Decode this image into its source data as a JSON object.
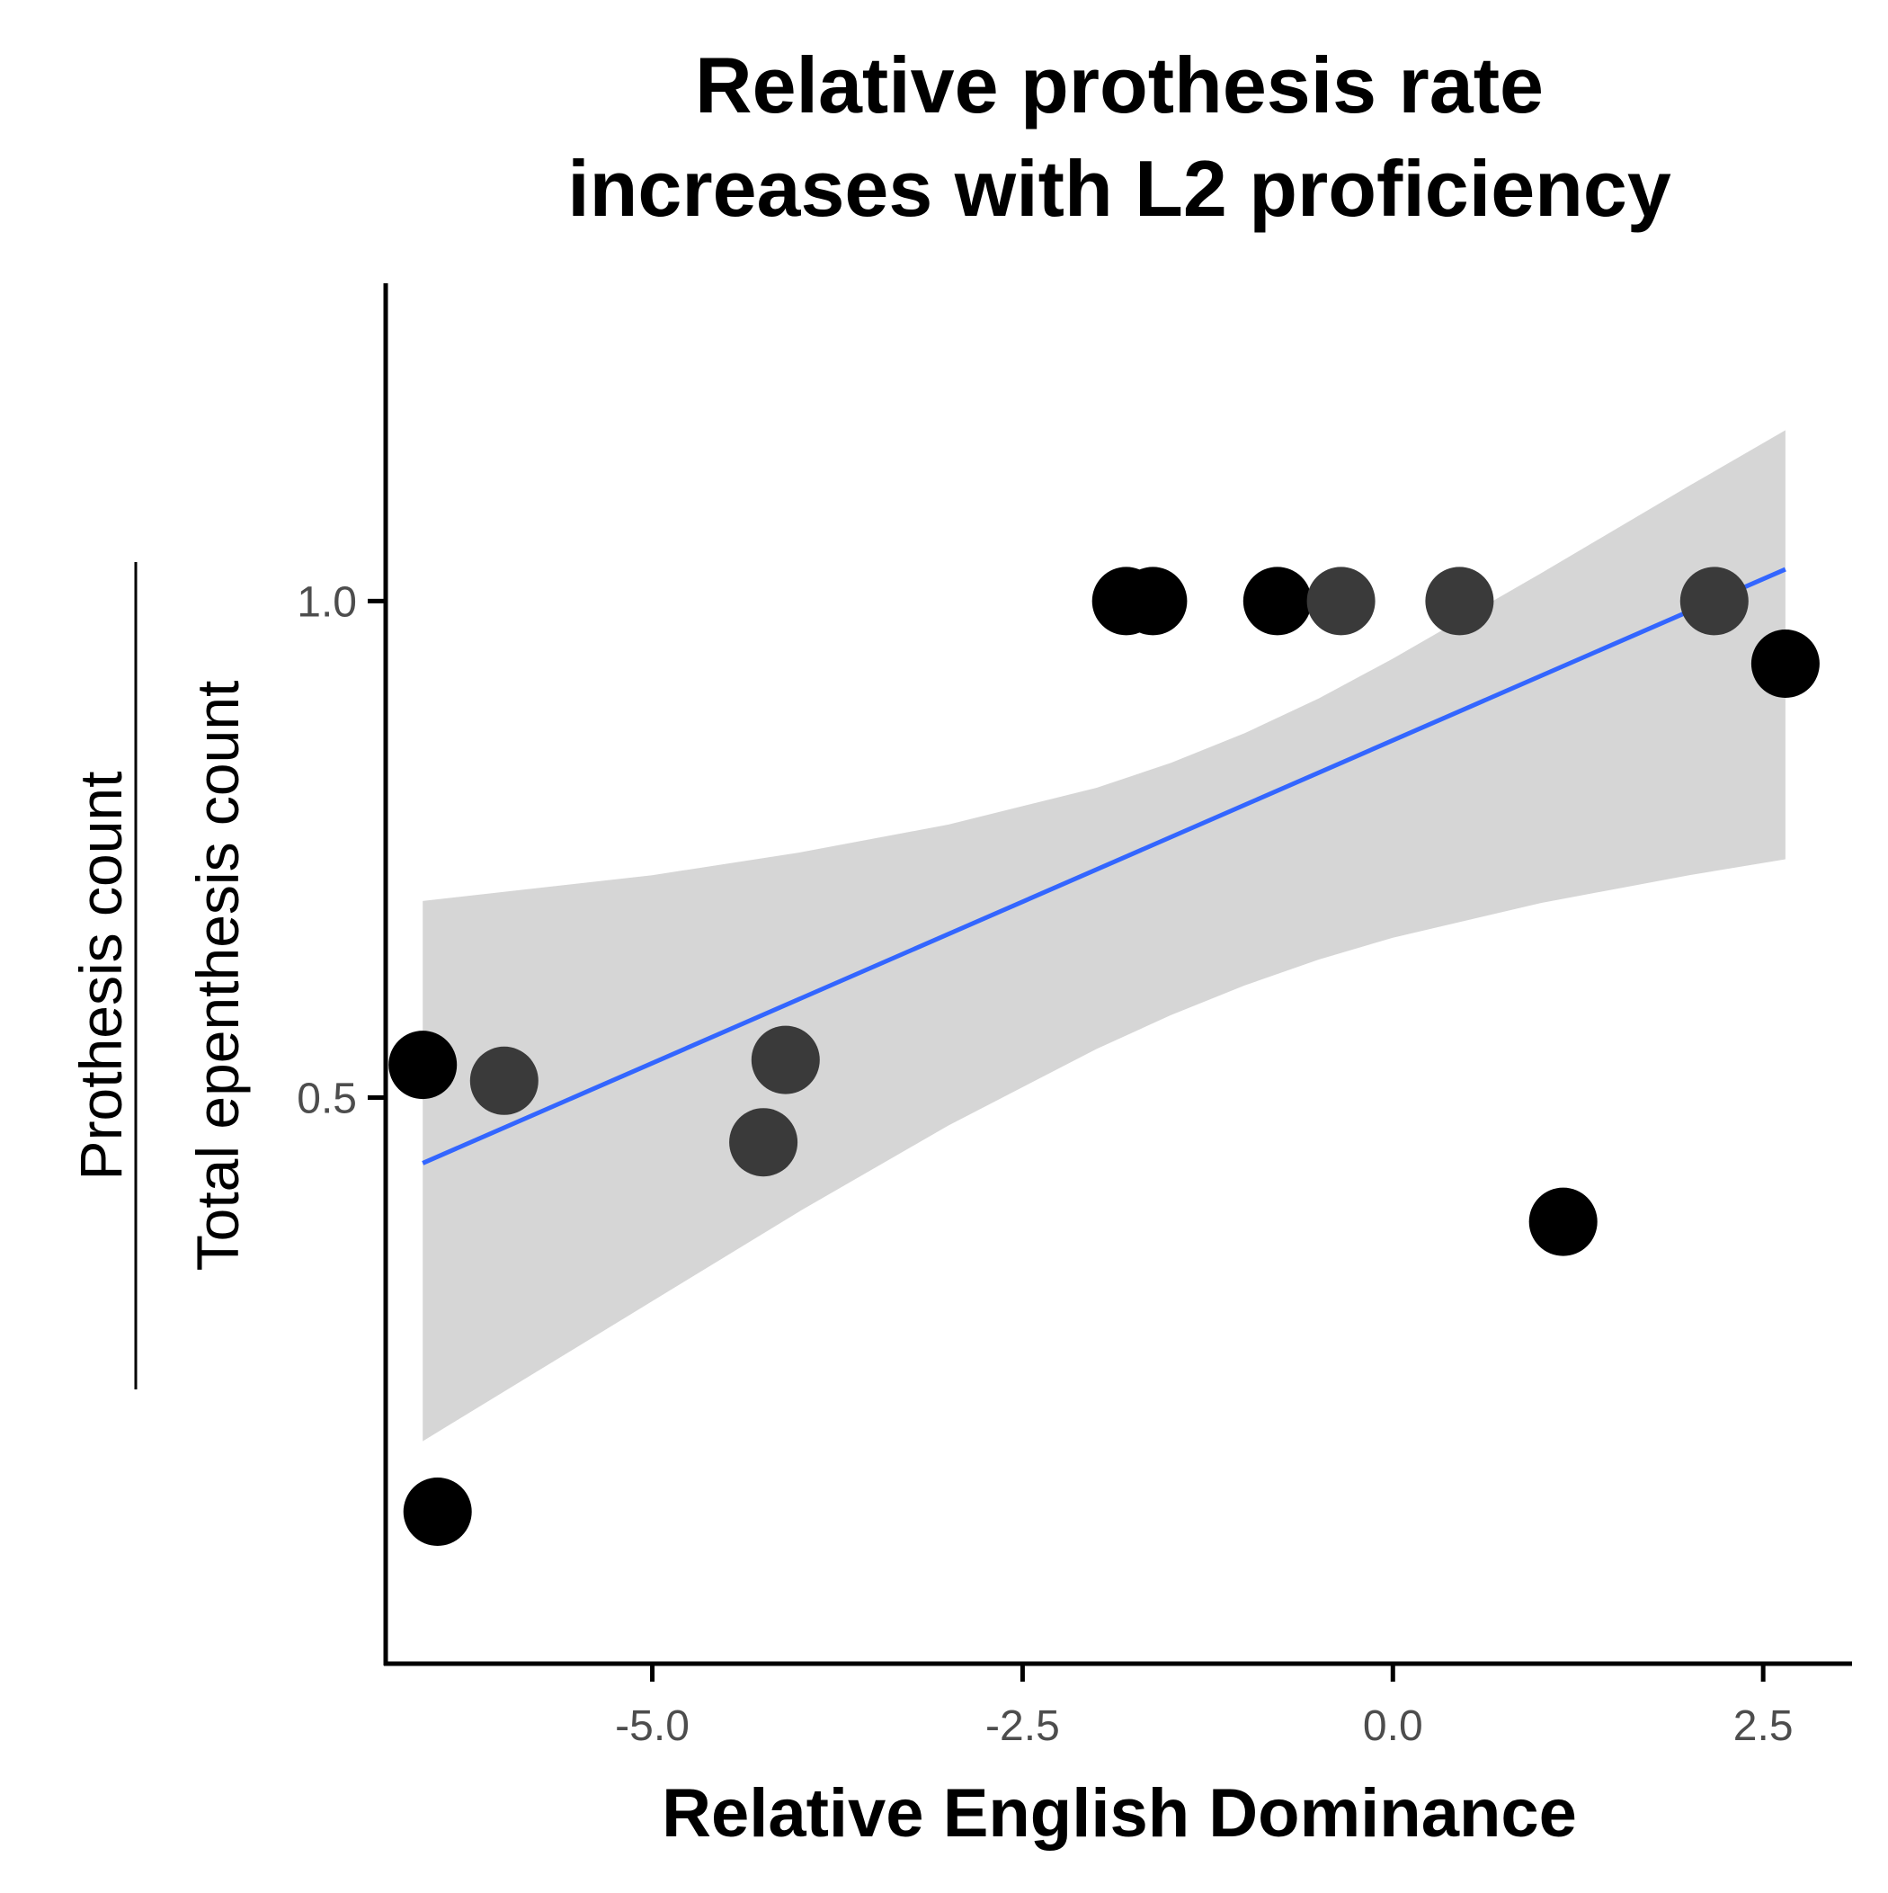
{
  "chart_data": {
    "type": "scatter",
    "title_lines": [
      "Relative prothesis rate",
      "increases with L2 proficiency"
    ],
    "xlabel": "Relative English Dominance",
    "ylabel": {
      "numerator": "Prothesis count",
      "denominator": "Total epenthesis count"
    },
    "xlim": [
      -6.8,
      3.1
    ],
    "ylim": [
      -0.07,
      1.32
    ],
    "x_ticks": [
      {
        "value": -5.0,
        "label": "-5.0"
      },
      {
        "value": -2.5,
        "label": "-2.5"
      },
      {
        "value": 0.0,
        "label": "0.0"
      },
      {
        "value": 2.5,
        "label": "2.5"
      }
    ],
    "y_ticks": [
      {
        "value": 0.5,
        "label": "0.5"
      },
      {
        "value": 1.0,
        "label": "1.0"
      }
    ],
    "grid": false,
    "legend": "none",
    "points": [
      {
        "x": -6.45,
        "y": 0.083,
        "shade": "dark"
      },
      {
        "x": -6.55,
        "y": 0.533,
        "shade": "dark"
      },
      {
        "x": -6.0,
        "y": 0.517,
        "shade": "mid"
      },
      {
        "x": -4.25,
        "y": 0.455,
        "shade": "mid"
      },
      {
        "x": -4.1,
        "y": 0.538,
        "shade": "mid"
      },
      {
        "x": -1.8,
        "y": 1.0,
        "shade": "dark"
      },
      {
        "x": -1.62,
        "y": 1.0,
        "shade": "dark"
      },
      {
        "x": -0.78,
        "y": 1.0,
        "shade": "dark"
      },
      {
        "x": -0.35,
        "y": 1.0,
        "shade": "mid"
      },
      {
        "x": 0.45,
        "y": 1.0,
        "shade": "mid"
      },
      {
        "x": 1.15,
        "y": 0.375,
        "shade": "dark"
      },
      {
        "x": 2.17,
        "y": 1.0,
        "shade": "mid"
      },
      {
        "x": 2.65,
        "y": 0.937,
        "shade": "dark"
      }
    ],
    "fit_line": {
      "x": [
        -6.55,
        2.65
      ],
      "y": [
        0.434,
        1.032
      ]
    },
    "confidence_band": [
      {
        "x": -6.55,
        "lower": 0.154,
        "upper": 0.698
      },
      {
        "x": -5.0,
        "lower": 0.295,
        "upper": 0.724
      },
      {
        "x": -4.0,
        "lower": 0.386,
        "upper": 0.747
      },
      {
        "x": -3.0,
        "lower": 0.472,
        "upper": 0.775
      },
      {
        "x": -2.0,
        "lower": 0.549,
        "upper": 0.812
      },
      {
        "x": -1.5,
        "lower": 0.583,
        "upper": 0.837
      },
      {
        "x": -1.0,
        "lower": 0.613,
        "upper": 0.867
      },
      {
        "x": -0.5,
        "lower": 0.639,
        "upper": 0.902
      },
      {
        "x": 0.0,
        "lower": 0.661,
        "upper": 0.942
      },
      {
        "x": 1.0,
        "lower": 0.696,
        "upper": 1.028
      },
      {
        "x": 2.0,
        "lower": 0.724,
        "upper": 1.116
      },
      {
        "x": 2.65,
        "lower": 0.74,
        "upper": 1.172
      }
    ],
    "colors": {
      "point_dark": "#000000",
      "point_mid": "#3a3a3a",
      "fit_line": "#3366ff",
      "band": "#d6d6d6",
      "axis": "#000000",
      "tick_label": "#4d4d4d"
    }
  }
}
